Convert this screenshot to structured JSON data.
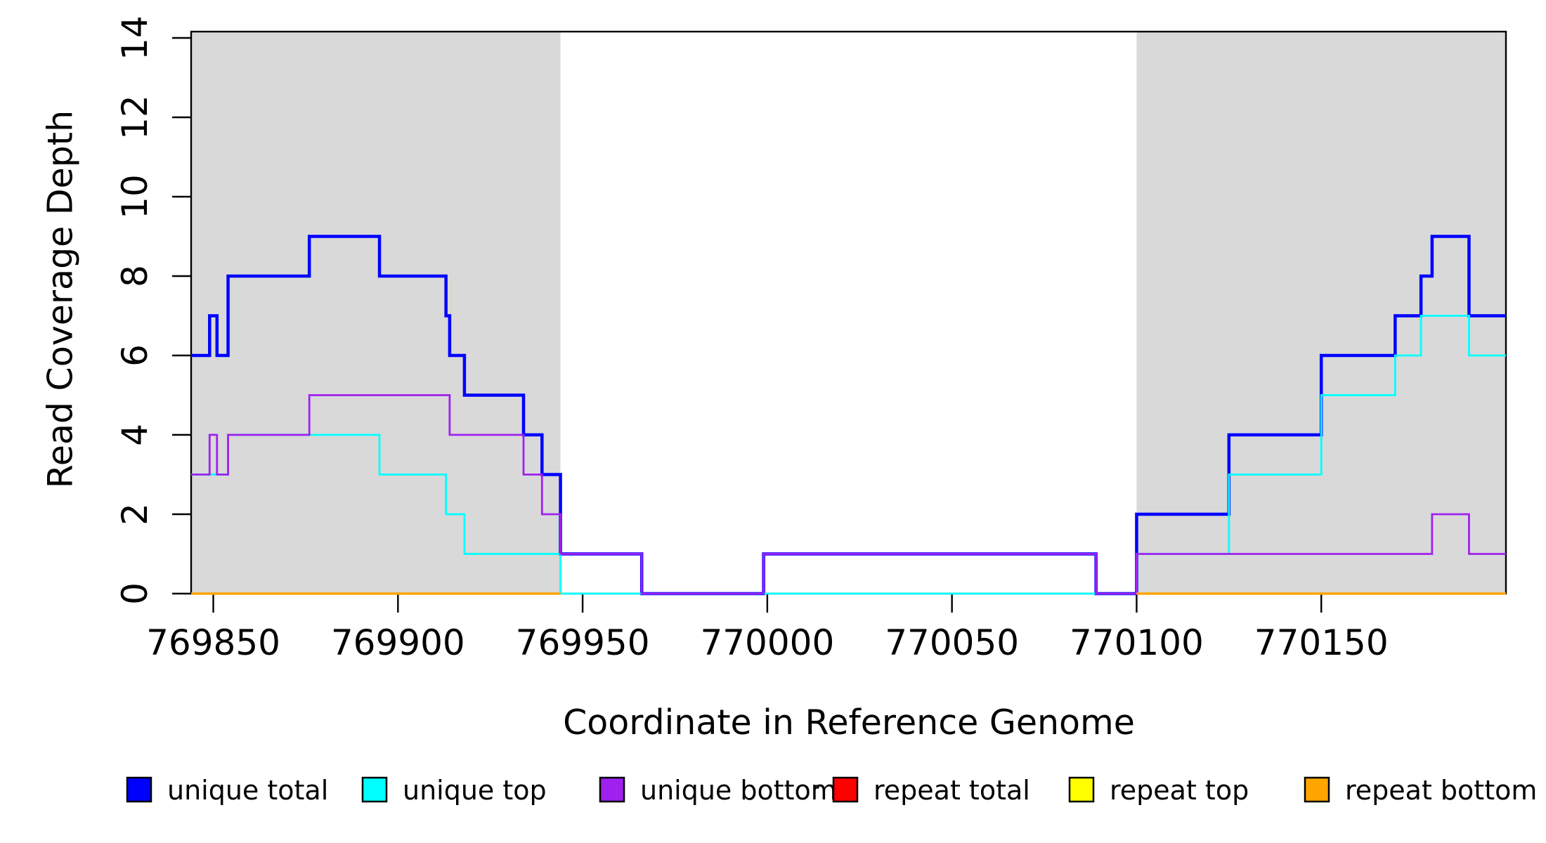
{
  "figure": {
    "x_axis_title": "Coordinate in Reference Genome",
    "y_axis_title": "Read Coverage Depth"
  },
  "chart_data": {
    "type": "line",
    "subtype": "step",
    "title": "",
    "xlabel": "Coordinate in Reference Genome",
    "ylabel": "Read Coverage Depth",
    "xlim": [
      769844,
      770200
    ],
    "ylim": [
      0,
      14
    ],
    "x_ticks": [
      769850,
      769900,
      769950,
      770000,
      770050,
      770100,
      770150
    ],
    "y_ticks": [
      0,
      2,
      4,
      6,
      8,
      10,
      12,
      14
    ],
    "grid": false,
    "legend_position": "bottom",
    "plot_background": "#ffffff",
    "box_color": "#000000",
    "background_bands": {
      "color": "#d9d9d9",
      "regions": [
        [
          769844,
          769944
        ],
        [
          770100,
          770200
        ]
      ]
    },
    "series": [
      {
        "name": "unique total",
        "color": "#0000ff",
        "line_width": 4.5,
        "parts": [
          {
            "steps": [
              [
                769844,
                6
              ],
              [
                769849,
                7
              ],
              [
                769851,
                6
              ],
              [
                769854,
                8
              ],
              [
                769876,
                9
              ],
              [
                769895,
                8
              ],
              [
                769913,
                7
              ],
              [
                769914,
                6
              ],
              [
                769918,
                5
              ],
              [
                769934,
                4
              ],
              [
                769939,
                3
              ],
              [
                769944,
                1
              ],
              [
                769966,
                0
              ],
              [
                769999,
                1
              ],
              [
                770089,
                0
              ],
              [
                770100,
                2
              ],
              [
                770125,
                4
              ],
              [
                770150,
                6
              ],
              [
                770170,
                7
              ],
              [
                770177,
                8
              ],
              [
                770180,
                9
              ],
              [
                770190,
                7
              ]
            ],
            "to": 770200
          }
        ]
      },
      {
        "name": "unique top",
        "color": "#00ffff",
        "line_width": 2.8,
        "parts": [
          {
            "steps": [
              [
                769844,
                3
              ],
              [
                769854,
                4
              ],
              [
                769895,
                3
              ],
              [
                769913,
                2
              ],
              [
                769918,
                1
              ],
              [
                769944,
                0
              ],
              [
                770100,
                1
              ],
              [
                770125,
                3
              ],
              [
                770150,
                5
              ],
              [
                770170,
                6
              ],
              [
                770177,
                7
              ],
              [
                770190,
                6
              ]
            ],
            "to": 770200
          }
        ]
      },
      {
        "name": "unique bottom",
        "color": "#a020f0",
        "line_width": 2.8,
        "parts": [
          {
            "steps": [
              [
                769844,
                3
              ],
              [
                769849,
                4
              ],
              [
                769851,
                3
              ],
              [
                769854,
                4
              ],
              [
                769876,
                5
              ],
              [
                769914,
                4
              ],
              [
                769934,
                3
              ],
              [
                769939,
                2
              ],
              [
                769944,
                1
              ],
              [
                769966,
                0
              ],
              [
                769999,
                1
              ],
              [
                770089,
                0
              ],
              [
                770100,
                1
              ],
              [
                770180,
                2
              ],
              [
                770190,
                1
              ]
            ],
            "to": 770200
          }
        ]
      },
      {
        "name": "repeat total",
        "color": "#ff0000",
        "line_width": 2.5,
        "parts": [
          {
            "steps": [
              [
                769844,
                0
              ]
            ],
            "to": 769944
          },
          {
            "steps": [
              [
                770100,
                0
              ]
            ],
            "to": 770200
          }
        ]
      },
      {
        "name": "repeat top",
        "color": "#ffff00",
        "line_width": 2.5,
        "parts": [
          {
            "steps": [
              [
                769844,
                0
              ]
            ],
            "to": 769944
          },
          {
            "steps": [
              [
                770100,
                0
              ]
            ],
            "to": 770200
          }
        ]
      },
      {
        "name": "repeat bottom",
        "color": "#ffa500",
        "line_width": 3.5,
        "parts": [
          {
            "steps": [
              [
                769844,
                0
              ]
            ],
            "to": 769944
          },
          {
            "steps": [
              [
                770100,
                0
              ]
            ],
            "to": 770200
          }
        ]
      }
    ]
  },
  "legend": {
    "items": [
      {
        "label": "unique total",
        "color": "#0000ff"
      },
      {
        "label": "unique top",
        "color": "#00ffff"
      },
      {
        "label": "unique bottom",
        "color": "#a020f0"
      },
      {
        "label": "repeat total",
        "color": "#ff0000"
      },
      {
        "label": "repeat top",
        "color": "#ffff00"
      },
      {
        "label": "repeat bottom",
        "color": "#ffa500"
      }
    ],
    "stray_mark_present": true
  }
}
